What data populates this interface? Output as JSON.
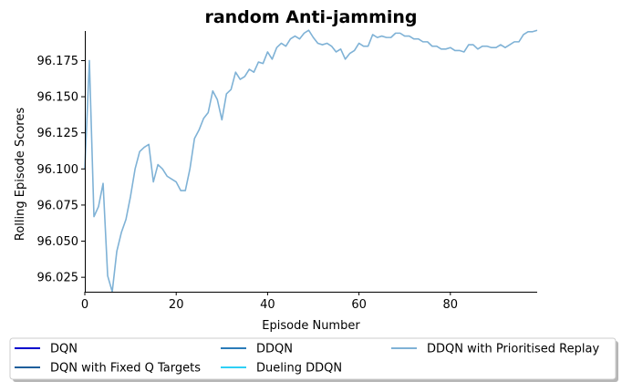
{
  "chart_data": {
    "type": "line",
    "title": "random Anti-jamming",
    "xlabel": "Episode Number",
    "ylabel": "Rolling Episode Scores",
    "xlim": [
      0,
      99
    ],
    "ylim": [
      96.015,
      96.1955
    ],
    "xticks": [
      0,
      20,
      40,
      60,
      80
    ],
    "xtick_labels": [
      "0",
      "20",
      "40",
      "60",
      "80"
    ],
    "yticks": [
      96.025,
      96.05,
      96.075,
      96.1,
      96.125,
      96.15,
      96.175
    ],
    "ytick_labels": [
      "96.025",
      "96.050",
      "96.075",
      "96.100",
      "96.125",
      "96.150",
      "96.175"
    ],
    "grid": false,
    "legend_position": "below",
    "legend": [
      {
        "name": "DQN",
        "color": "#0000cd"
      },
      {
        "name": "DQN with Fixed Q Targets",
        "color": "#1f5f9b"
      },
      {
        "name": "DDQN",
        "color": "#2b7bb9"
      },
      {
        "name": "Dueling DDQN",
        "color": "#2fd0f5"
      },
      {
        "name": "DDQN with Prioritised Replay",
        "color": "#7fb2d6"
      }
    ],
    "series": [
      {
        "name": "DDQN with Prioritised Replay",
        "color": "#7fb2d6",
        "x": [
          0,
          1,
          2,
          3,
          4,
          5,
          6,
          7,
          8,
          9,
          10,
          11,
          12,
          13,
          14,
          15,
          16,
          17,
          18,
          19,
          20,
          21,
          22,
          23,
          24,
          25,
          26,
          27,
          28,
          29,
          30,
          31,
          32,
          33,
          34,
          35,
          36,
          37,
          38,
          39,
          40,
          41,
          42,
          43,
          44,
          45,
          46,
          47,
          48,
          49,
          50,
          51,
          52,
          53,
          54,
          55,
          56,
          57,
          58,
          59,
          60,
          61,
          62,
          63,
          64,
          65,
          66,
          67,
          68,
          69,
          70,
          71,
          72,
          73,
          74,
          75,
          76,
          77,
          78,
          79,
          80,
          81,
          82,
          83,
          84,
          85,
          86,
          87,
          88,
          89,
          90,
          91,
          92,
          93,
          94,
          95,
          96,
          97,
          98,
          99
        ],
        "values": [
          96.1,
          96.175,
          96.067,
          96.074,
          96.09,
          96.026,
          96.015,
          96.043,
          96.056,
          96.065,
          96.081,
          96.1,
          96.112,
          96.115,
          96.117,
          96.091,
          96.103,
          96.1,
          96.095,
          96.093,
          96.091,
          96.085,
          96.085,
          96.1,
          96.121,
          96.127,
          96.135,
          96.139,
          96.154,
          96.148,
          96.134,
          96.152,
          96.155,
          96.167,
          96.162,
          96.164,
          96.169,
          96.167,
          96.174,
          96.173,
          96.181,
          96.176,
          96.184,
          96.187,
          96.185,
          96.19,
          96.192,
          96.19,
          96.194,
          96.196,
          96.191,
          96.187,
          96.186,
          96.187,
          96.185,
          96.181,
          96.183,
          96.176,
          96.18,
          96.182,
          96.187,
          96.185,
          96.185,
          96.193,
          96.191,
          96.192,
          96.191,
          96.191,
          96.194,
          96.194,
          96.192,
          96.192,
          96.19,
          96.19,
          96.188,
          96.188,
          96.185,
          96.185,
          96.183,
          96.183,
          96.184,
          96.182,
          96.182,
          96.181,
          96.186,
          96.186,
          96.183,
          96.185,
          96.185,
          96.184,
          96.184,
          96.186,
          96.184,
          96.186,
          96.188,
          96.188,
          96.193,
          96.195,
          96.195,
          96.196
        ]
      }
    ]
  }
}
